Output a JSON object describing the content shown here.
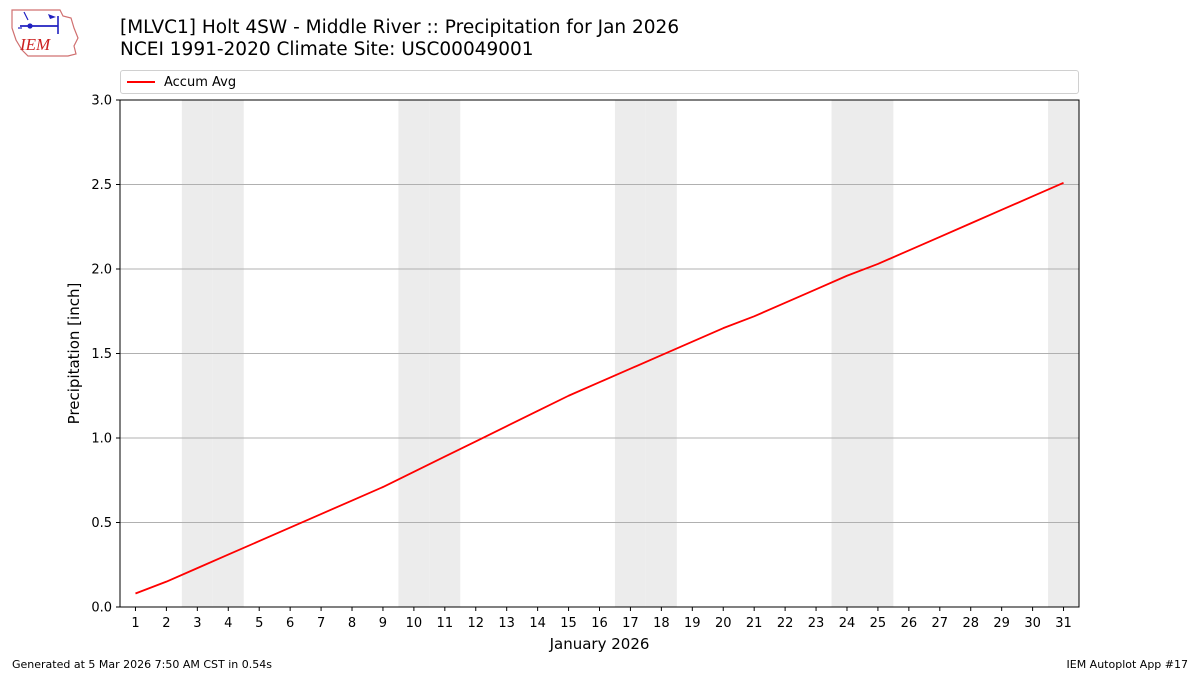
{
  "header": {
    "title_line1": "[MLVC1] Holt 4SW - Middle River :: Precipitation for Jan 2026",
    "title_line2": "NCEI 1991-2020 Climate Site: USC00049001",
    "logo_text": "IEM"
  },
  "footer": {
    "generated": "Generated at 5 Mar 2026 7:50 AM CST in 0.54s",
    "app": "IEM Autoplot App #17"
  },
  "colors": {
    "series": "#ff0000",
    "weekend_band": "#ececec",
    "grid": "#b0b0b0",
    "logo": "#2020c0"
  },
  "chart_data": {
    "type": "line",
    "xlabel": "January 2026",
    "ylabel": "Precipitation [inch]",
    "xlim": [
      0.5,
      31.5
    ],
    "ylim": [
      0,
      3.0
    ],
    "grid": "horizontal",
    "legend_placement": "top",
    "categories": [
      "1",
      "2",
      "3",
      "4",
      "5",
      "6",
      "7",
      "8",
      "9",
      "10",
      "11",
      "12",
      "13",
      "14",
      "15",
      "16",
      "17",
      "18",
      "19",
      "20",
      "21",
      "22",
      "23",
      "24",
      "25",
      "26",
      "27",
      "28",
      "29",
      "30",
      "31"
    ],
    "yticks": [
      "0.0",
      "0.5",
      "1.0",
      "1.5",
      "2.0",
      "2.5",
      "3.0"
    ],
    "shaded_days": [
      3,
      4,
      10,
      11,
      17,
      18,
      24,
      25,
      31
    ],
    "series": [
      {
        "name": "Accum Avg",
        "color": "#ff0000",
        "x": [
          1,
          2,
          3,
          4,
          5,
          6,
          7,
          8,
          9,
          10,
          11,
          12,
          13,
          14,
          15,
          16,
          17,
          18,
          19,
          20,
          21,
          22,
          23,
          24,
          25,
          26,
          27,
          28,
          29,
          30,
          31
        ],
        "values": [
          0.08,
          0.15,
          0.23,
          0.31,
          0.39,
          0.47,
          0.55,
          0.63,
          0.71,
          0.8,
          0.89,
          0.98,
          1.07,
          1.16,
          1.25,
          1.33,
          1.41,
          1.49,
          1.57,
          1.65,
          1.72,
          1.8,
          1.88,
          1.96,
          2.03,
          2.11,
          2.19,
          2.27,
          2.35,
          2.43,
          2.51
        ]
      }
    ]
  }
}
